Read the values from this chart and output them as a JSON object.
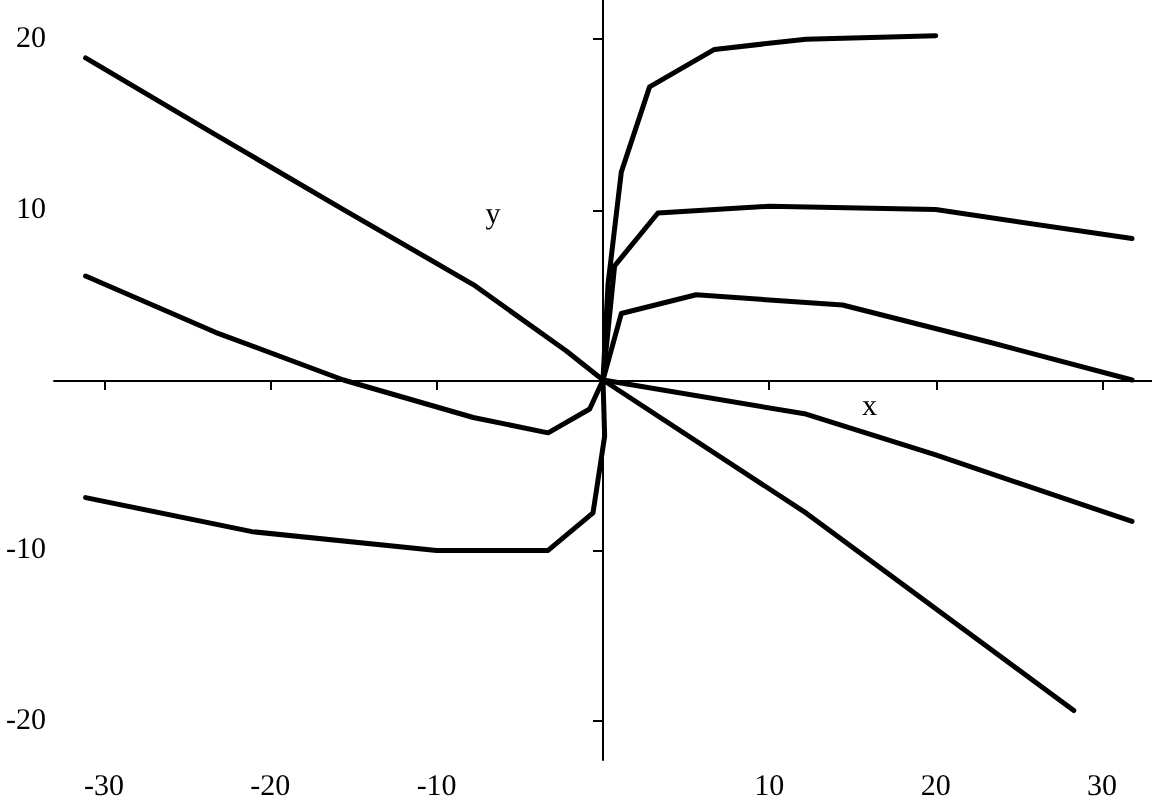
{
  "chart_data": {
    "type": "line",
    "xlabel": "x",
    "ylabel": "y",
    "xlim": [
      -33,
      33
    ],
    "ylim": [
      -22.3,
      22.3
    ],
    "xticks": [
      -30,
      -20,
      -10,
      10,
      20,
      30
    ],
    "yticks": [
      -20,
      -10,
      10,
      20
    ],
    "grid": false,
    "marker": "none",
    "line_style": "solid",
    "series": [
      {
        "color": "#000000",
        "x": [
          -31.1,
          -21.1,
          -10,
          -3.3,
          -0.6,
          0.1,
          0,
          0.3,
          1.1,
          2.8,
          6.7,
          12.2,
          20
        ],
        "values": [
          -6.9,
          -8.9,
          -10,
          -10,
          -7.8,
          -3.3,
          0,
          5.6,
          12.2,
          17.2,
          19.4,
          20,
          20.2
        ]
      },
      {
        "color": "#000000",
        "x": [
          0,
          0.7,
          3.3,
          10,
          20,
          31.8
        ],
        "values": [
          0,
          6.7,
          9.8,
          10.2,
          10,
          8.3
        ]
      },
      {
        "color": "#000000",
        "x": [
          0,
          1.1,
          5.6,
          14.4,
          23.3,
          31.8
        ],
        "values": [
          0,
          3.9,
          5,
          4.4,
          2.2,
          0
        ]
      },
      {
        "color": "#000000",
        "x": [
          -31.1,
          -23.3,
          -15.6,
          -7.8,
          -3.3,
          -0.8,
          0,
          12.2,
          20,
          31.8
        ],
        "values": [
          6.1,
          2.8,
          0,
          -2.2,
          -3.1,
          -1.7,
          0,
          -2,
          -4.4,
          -8.3
        ]
      },
      {
        "color": "#000000",
        "x": [
          -31.1,
          -23.3,
          -15.6,
          -7.8,
          -2.2,
          0,
          12.2,
          28.3
        ],
        "values": [
          18.9,
          14.4,
          10,
          5.6,
          1.7,
          0,
          -7.8,
          -19.4
        ]
      }
    ]
  }
}
